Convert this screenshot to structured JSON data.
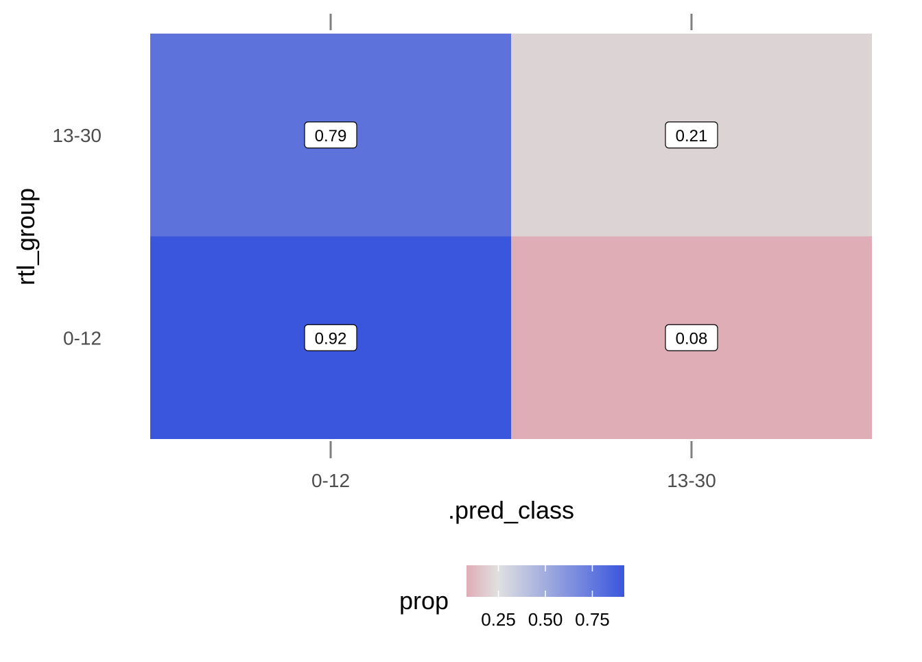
{
  "chart_data": {
    "type": "heatmap",
    "xlabel": ".pred_class",
    "ylabel": "rtl_group",
    "x_categories": [
      "0-12",
      "13-30"
    ],
    "y_categories": [
      "0-12",
      "13-30"
    ],
    "cells": [
      {
        "x": "0-12",
        "y": "13-30",
        "value": 0.79,
        "label": "0.79",
        "color": "#5e72db"
      },
      {
        "x": "13-30",
        "y": "13-30",
        "value": 0.21,
        "label": "0.21",
        "color": "#dcd3d5"
      },
      {
        "x": "0-12",
        "y": "0-12",
        "value": 0.92,
        "label": "0.92",
        "color": "#3a56dd"
      },
      {
        "x": "13-30",
        "y": "0-12",
        "value": 0.08,
        "label": "0.08",
        "color": "#dfadb6"
      }
    ],
    "legend": {
      "title": "prop",
      "position": "bottom",
      "range": [
        0.08,
        0.92
      ],
      "ticks": [
        0.25,
        0.5,
        0.75
      ],
      "tick_labels": [
        "0.25",
        "0.50",
        "0.75"
      ],
      "colors": {
        "low": "#dfadb6",
        "mid": "#e0e0e0",
        "high": "#3a56dd"
      }
    },
    "grid": false
  }
}
